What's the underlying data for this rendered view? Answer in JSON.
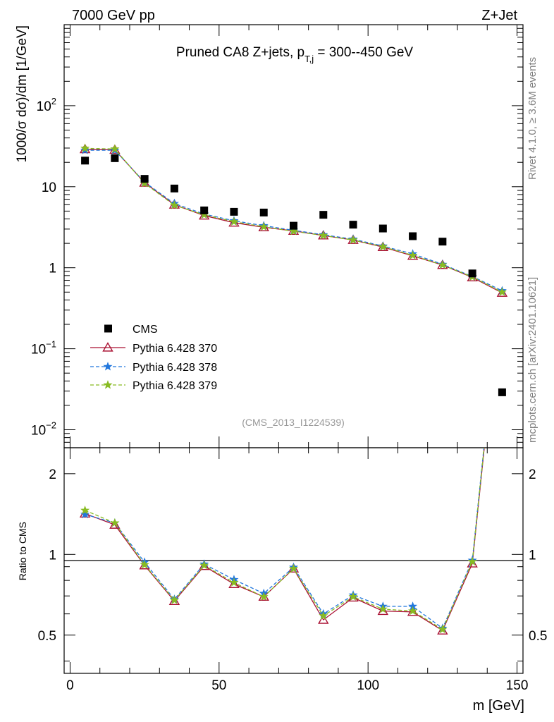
{
  "header": {
    "left": "7000 GeV pp",
    "right": "Z+Jet"
  },
  "side_text": {
    "rivet": "Rivet 4.1.0, ≥ 3.6M events",
    "mcplots": "mcplots.cern.ch [arXiv:2401.10621]"
  },
  "chart_data": {
    "type": "line",
    "title_main": "Pruned CA8 Z+jets, p",
    "title_sub": "T,j",
    "title_tail": " = 300--450 GeV",
    "analysis_id": "(CMS_2013_I1224539)",
    "xlabel": "m [GeV]",
    "ylabel": "1000/σ  dσ)/dm [1/GeV]",
    "ratio_ylabel": "Ratio to CMS",
    "xlim": [
      -2,
      152
    ],
    "ylim": [
      0.006,
      1000
    ],
    "yscale": "log",
    "ratio_ylim": [
      0.36,
      2.5
    ],
    "x_ticks": [
      "0",
      "50",
      "100",
      "150"
    ],
    "y_ticks": [
      {
        "base": "10",
        "exp": "−2"
      },
      {
        "base": "10",
        "exp": "−1"
      },
      {
        "base": "1",
        "exp": ""
      },
      {
        "base": "10",
        "exp": ""
      },
      {
        "base": "10",
        "exp": "2"
      }
    ],
    "ratio_ticks": [
      "0.5",
      "1",
      "2"
    ],
    "x": [
      5,
      15,
      25,
      35,
      45,
      55,
      65,
      75,
      85,
      95,
      105,
      115,
      125,
      135,
      145
    ],
    "data": {
      "name": "CMS",
      "values": [
        21,
        22.5,
        12.5,
        9.5,
        5.1,
        4.9,
        4.8,
        3.3,
        4.5,
        3.4,
        3.05,
        2.45,
        2.1,
        0.85,
        0.029
      ]
    },
    "series": [
      {
        "name": "Pythia 6.428 370",
        "color": "#aa1133",
        "marker": "triangle",
        "dash": "",
        "values": [
          29,
          28.5,
          11.2,
          6.0,
          4.4,
          3.6,
          3.15,
          2.85,
          2.5,
          2.2,
          1.8,
          1.4,
          1.08,
          0.76,
          0.49
        ],
        "ratio": [
          1.42,
          1.29,
          0.91,
          0.67,
          0.905,
          0.775,
          0.695,
          0.885,
          0.57,
          0.69,
          0.615,
          0.61,
          0.52,
          0.925,
          11.0
        ]
      },
      {
        "name": "Pythia 6.428 378",
        "color": "#2277dd",
        "marker": "star",
        "dash": "5,3",
        "values": [
          28.2,
          28.2,
          11.4,
          6.2,
          4.6,
          3.8,
          3.3,
          2.9,
          2.55,
          2.25,
          1.85,
          1.48,
          1.1,
          0.78,
          0.52
        ],
        "ratio": [
          1.41,
          1.31,
          0.935,
          0.68,
          0.92,
          0.805,
          0.715,
          0.895,
          0.6,
          0.705,
          0.64,
          0.64,
          0.53,
          0.95,
          11.5
        ]
      },
      {
        "name": "Pythia 6.428 379",
        "color": "#88bb22",
        "marker": "star",
        "dash": "5,3",
        "values": [
          29.8,
          29.2,
          11.0,
          5.9,
          4.5,
          3.7,
          3.2,
          2.82,
          2.5,
          2.2,
          1.82,
          1.42,
          1.08,
          0.77,
          0.5
        ],
        "ratio": [
          1.46,
          1.31,
          0.915,
          0.675,
          0.91,
          0.785,
          0.695,
          0.885,
          0.59,
          0.695,
          0.625,
          0.615,
          0.525,
          0.94,
          11.2
        ]
      }
    ]
  }
}
